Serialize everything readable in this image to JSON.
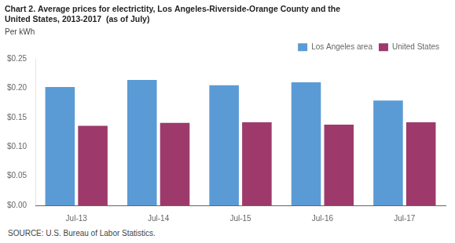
{
  "chart_data": {
    "type": "bar",
    "title": [
      "Chart 2. Average prices for electrictity, Los Angeles-Riverside-Orange County and the",
      "United States, 2013-2017  (as of July)"
    ],
    "subtitle": "Per kWh",
    "source": "SOURCE: U.S. Bureau of Labor Statistics.",
    "categories": [
      "Jul-13",
      "Jul-14",
      "Jul-15",
      "Jul-16",
      "Jul-17"
    ],
    "series": [
      {
        "name": "Los Angeles area",
        "color": "#5B9BD5",
        "values": [
          0.202,
          0.214,
          0.205,
          0.21,
          0.179
        ]
      },
      {
        "name": "United States",
        "color": "#9E3A6B",
        "values": [
          0.136,
          0.141,
          0.142,
          0.138,
          0.142
        ]
      }
    ],
    "ylim": [
      0,
      0.25
    ],
    "yticks": [
      {
        "value": 0.0,
        "label": "$0.00"
      },
      {
        "value": 0.05,
        "label": "$0.05"
      },
      {
        "value": 0.1,
        "label": "$0.10"
      },
      {
        "value": 0.15,
        "label": "$0.15"
      },
      {
        "value": 0.2,
        "label": "$0.20"
      },
      {
        "value": 0.25,
        "label": "$0.25"
      }
    ],
    "grid": false,
    "legend": "upper right"
  }
}
